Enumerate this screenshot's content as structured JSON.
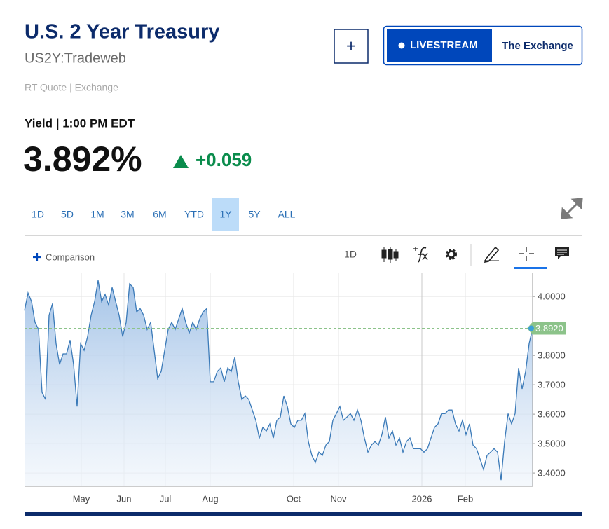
{
  "header": {
    "title": "U.S. 2 Year Treasury",
    "symbol": "US2Y:Tradeweb",
    "quote_type": "RT Quote | Exchange",
    "add_button": "+",
    "livestream": "LIVESTREAM",
    "show": "The Exchange"
  },
  "quote": {
    "label": "Yield | 1:00 PM EDT",
    "price": "3.892%",
    "change": "+0.059"
  },
  "toolbar": {
    "ranges": [
      "1D",
      "5D",
      "1M",
      "3M",
      "6M",
      "YTD",
      "1Y",
      "5Y",
      "ALL"
    ],
    "selected_range_index": 6,
    "comparison": "Comparison",
    "interval": "1D"
  },
  "chart_data": {
    "type": "area",
    "series": [
      {
        "color": "#3b7ab8",
        "values": [
          3.952,
          4.012,
          3.983,
          3.912,
          3.888,
          3.674,
          3.65,
          3.936,
          3.976,
          3.84,
          3.769,
          3.805,
          3.805,
          3.852,
          3.769,
          3.626,
          3.84,
          3.817,
          3.864,
          3.936,
          3.983,
          4.055,
          3.983,
          4.007,
          3.971,
          4.031,
          3.983,
          3.936,
          3.864,
          3.912,
          4.043,
          4.031,
          3.948,
          3.959,
          3.936,
          3.888,
          3.912,
          3.817,
          3.721,
          3.745,
          3.817,
          3.888,
          3.912,
          3.888,
          3.924,
          3.959,
          3.912,
          3.876,
          3.912,
          3.888,
          3.924,
          3.948,
          3.959,
          3.71,
          3.71,
          3.745,
          3.757,
          3.71,
          3.757,
          3.745,
          3.793,
          3.71,
          3.65,
          3.662,
          3.65,
          3.614,
          3.579,
          3.519,
          3.555,
          3.543,
          3.567,
          3.519,
          3.579,
          3.59,
          3.662,
          3.626,
          3.567,
          3.555,
          3.579,
          3.579,
          3.602,
          3.507,
          3.46,
          3.436,
          3.471,
          3.46,
          3.495,
          3.507,
          3.579,
          3.602,
          3.626,
          3.579,
          3.59,
          3.602,
          3.579,
          3.614,
          3.579,
          3.519,
          3.471,
          3.495,
          3.507,
          3.495,
          3.531,
          3.59,
          3.519,
          3.543,
          3.495,
          3.519,
          3.471,
          3.507,
          3.519,
          3.483,
          3.483,
          3.483,
          3.471,
          3.483,
          3.519,
          3.555,
          3.567,
          3.602,
          3.602,
          3.614,
          3.614,
          3.567,
          3.543,
          3.579,
          3.531,
          3.567,
          3.495,
          3.483,
          3.448,
          3.412,
          3.46,
          3.471,
          3.483,
          3.471,
          3.376,
          3.507,
          3.602,
          3.567,
          3.602,
          3.757,
          3.686,
          3.745,
          3.84,
          3.892
        ]
      }
    ],
    "xlim": [
      0,
      145
    ],
    "xticks": [
      {
        "value": 16.2,
        "label": "May"
      },
      {
        "value": 28.4,
        "label": "Jun"
      },
      {
        "value": 40.2,
        "label": "Jul"
      },
      {
        "value": 53,
        "label": "Aug"
      },
      {
        "value": 76.8,
        "label": "Oct"
      },
      {
        "value": 89.6,
        "label": "Nov"
      },
      {
        "value": 113.4,
        "label": "2026"
      },
      {
        "value": 125.8,
        "label": "Feb"
      }
    ],
    "ylim": [
      3.355,
      4.079
    ],
    "yticks": [
      {
        "value": 3.4,
        "label": "3.4000"
      },
      {
        "value": 3.5,
        "label": "3.5000"
      },
      {
        "value": 3.6,
        "label": "3.6000"
      },
      {
        "value": 3.7,
        "label": "3.7000"
      },
      {
        "value": 3.8,
        "label": "3.8000"
      },
      {
        "value": 4.0,
        "label": "4.0000"
      }
    ],
    "last_price": {
      "value": 3.892,
      "label": "3.8920"
    },
    "grid": true
  }
}
